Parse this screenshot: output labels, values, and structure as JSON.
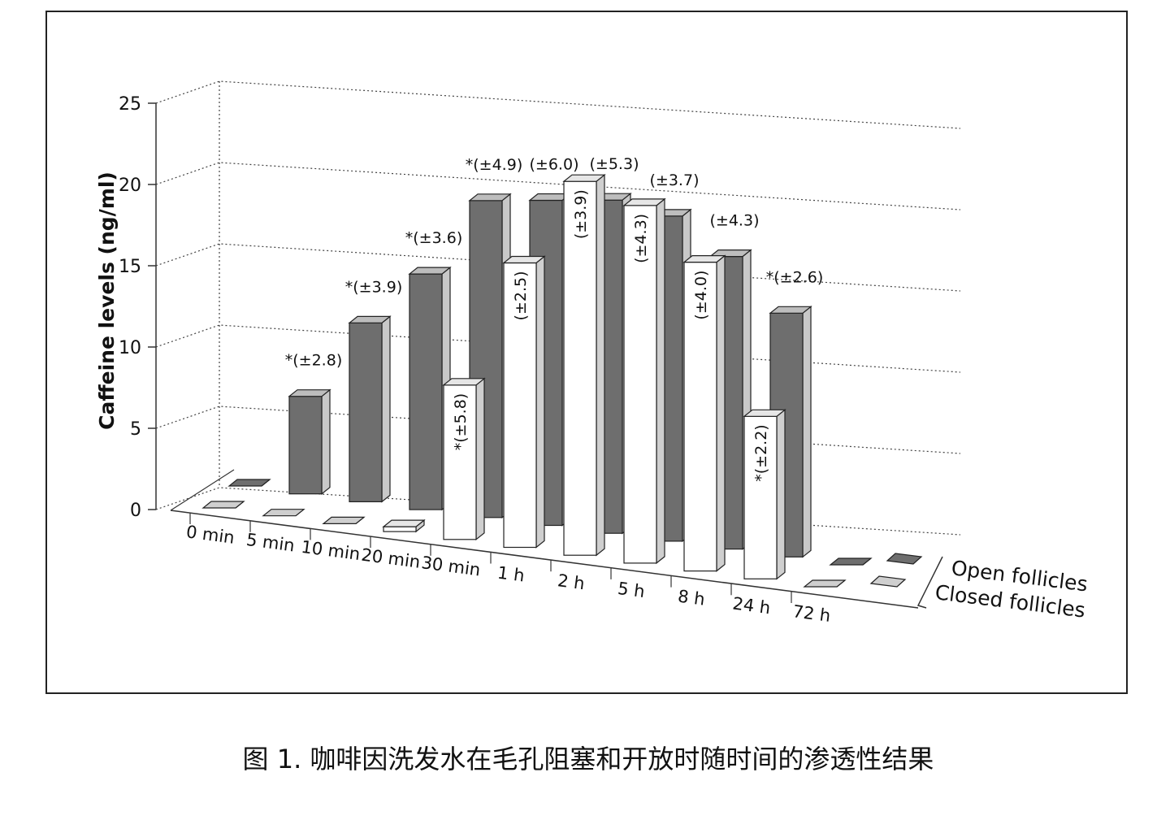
{
  "chart_data": {
    "type": "bar3d",
    "ylabel": "Caffeine levels (ng/ml)",
    "categories": [
      "0 min",
      "5 min",
      "10 min",
      "20 min",
      "30 min",
      "1 h",
      "2 h",
      "5 h",
      "8 h",
      "24 h",
      "72 h"
    ],
    "series": [
      {
        "name": "Open follicles",
        "color": "#6e6e6e",
        "values": [
          0,
          6,
          11,
          14.5,
          19.5,
          20,
          20.5,
          20,
          18,
          15,
          0
        ],
        "error_labels": [
          null,
          "*(±2.8)",
          "*(±3.9)",
          "*(±3.6)",
          "*(±4.9)",
          "(±6.0)",
          "(±5.3)",
          "(±3.7)",
          "(±4.3)",
          "*(±2.6)",
          null
        ]
      },
      {
        "name": "Closed follicles",
        "color": "#ffffff",
        "values": [
          0,
          0,
          0,
          0.3,
          9.5,
          17.5,
          23,
          22,
          19,
          10,
          0
        ],
        "error_labels": [
          null,
          null,
          null,
          null,
          "*(±5.8)",
          "(±2.5)",
          "(±3.9)",
          "(±4.3)",
          "(±4.0)",
          "*(±2.2)",
          null
        ]
      }
    ],
    "ylim": [
      0,
      25
    ],
    "yticks": [
      0,
      5,
      10,
      15,
      20,
      25
    ],
    "grid": true,
    "caption": "图 1. 咖啡因洗发水在毛孔阻塞和开放时随时间的渗透性结果"
  }
}
